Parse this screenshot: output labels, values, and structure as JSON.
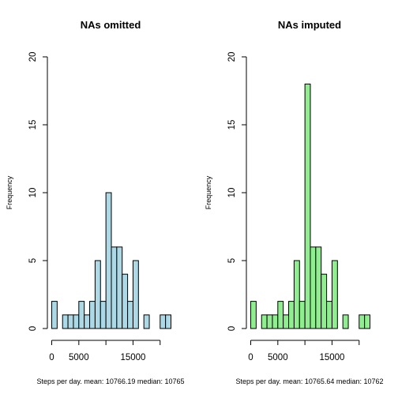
{
  "chart_data": [
    {
      "type": "bar",
      "title": "NAs omitted",
      "xlabel": "Steps per day. mean: 10766.19  median: 10765",
      "ylabel": "Frequency",
      "bin_width": 1000,
      "x_range": [
        0,
        22000
      ],
      "ylim": [
        0,
        20
      ],
      "x_ticks": [
        0,
        5000,
        15000
      ],
      "x_tick_positions": [
        0,
        5000,
        10000,
        15000,
        20000
      ],
      "y_ticks": [
        0,
        5,
        10,
        15,
        20
      ],
      "values": [
        2,
        0,
        1,
        1,
        1,
        2,
        1,
        2,
        5,
        2,
        10,
        6,
        6,
        4,
        2,
        5,
        0,
        1,
        0,
        0,
        1,
        1
      ],
      "fill": "#ADD8E6",
      "grid": false
    },
    {
      "type": "bar",
      "title": "NAs imputed",
      "xlabel": "Steps per day. mean: 10765.64  median: 10762",
      "ylabel": "Frequency",
      "bin_width": 1000,
      "x_range": [
        0,
        22000
      ],
      "ylim": [
        0,
        20
      ],
      "x_ticks": [
        0,
        5000,
        15000
      ],
      "x_tick_positions": [
        0,
        5000,
        10000,
        15000,
        20000
      ],
      "y_ticks": [
        0,
        5,
        10,
        15,
        20
      ],
      "values": [
        2,
        0,
        1,
        1,
        1,
        2,
        1,
        2,
        5,
        2,
        18,
        6,
        6,
        4,
        2,
        5,
        0,
        1,
        0,
        0,
        1,
        1
      ],
      "fill": "#90EE90",
      "grid": false
    }
  ]
}
